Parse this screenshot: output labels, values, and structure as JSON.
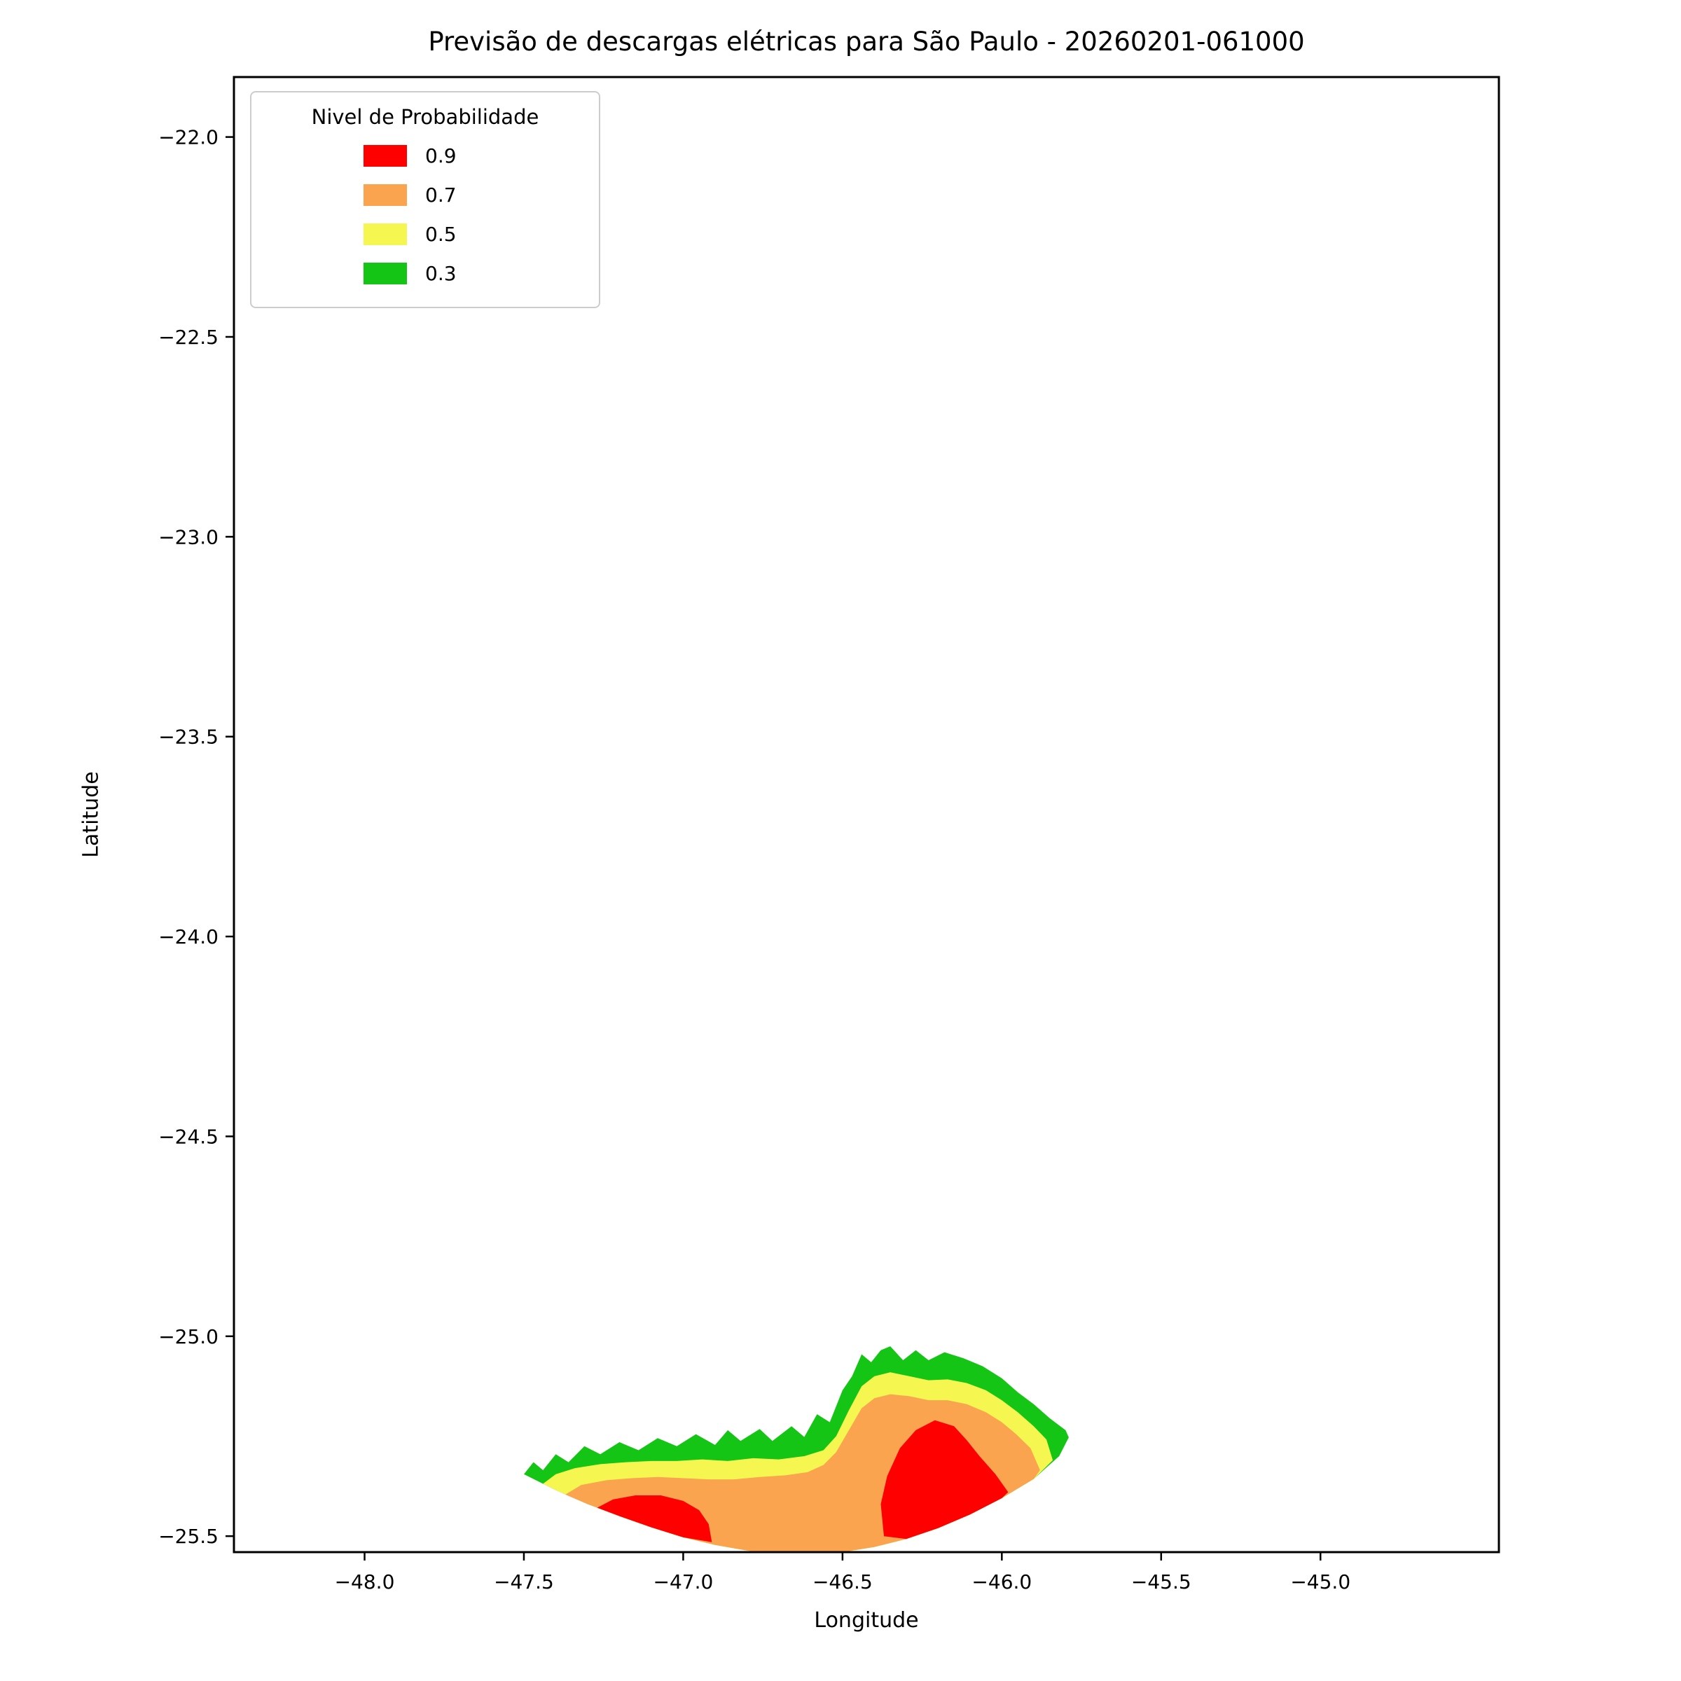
{
  "title": "Previsão de descargas elétricas para São Paulo - 20260201-061000",
  "legend": {
    "title": "Nivel de Probabilidade",
    "entries": [
      {
        "label": "0.9",
        "color": "#fe0000"
      },
      {
        "label": "0.7",
        "color": "#fba44f"
      },
      {
        "label": "0.5",
        "color": "#f6f651"
      },
      {
        "label": "0.3",
        "color": "#15c515"
      }
    ]
  },
  "chart_data": {
    "type": "filled-contour",
    "title": "Previsão de descargas elétricas para São Paulo - 20260201-061000",
    "xlabel": "Longitude",
    "ylabel": "Latitude",
    "xlim": [
      -48.41,
      -44.44
    ],
    "ylim": [
      -25.54,
      -21.85
    ],
    "xticks": [
      -48.0,
      -47.5,
      -47.0,
      -46.5,
      -46.0,
      -45.5,
      -45.0
    ],
    "yticks": [
      -22.0,
      -22.5,
      -23.0,
      -23.5,
      -24.0,
      -24.5,
      -25.0,
      -25.5
    ],
    "grid": false,
    "legend_position": "upper left",
    "levels": [
      {
        "value": 0.3,
        "color": "#15c515",
        "polygons": [
          [
            [
              -47.5,
              -25.345
            ],
            [
              -47.47,
              -25.315
            ],
            [
              -47.44,
              -25.335
            ],
            [
              -47.4,
              -25.295
            ],
            [
              -47.36,
              -25.315
            ],
            [
              -47.31,
              -25.275
            ],
            [
              -47.26,
              -25.295
            ],
            [
              -47.2,
              -25.265
            ],
            [
              -47.14,
              -25.285
            ],
            [
              -47.08,
              -25.255
            ],
            [
              -47.02,
              -25.275
            ],
            [
              -46.96,
              -25.245
            ],
            [
              -46.9,
              -25.272
            ],
            [
              -46.86,
              -25.235
            ],
            [
              -46.82,
              -25.262
            ],
            [
              -46.76,
              -25.232
            ],
            [
              -46.72,
              -25.262
            ],
            [
              -46.66,
              -25.225
            ],
            [
              -46.62,
              -25.252
            ],
            [
              -46.58,
              -25.195
            ],
            [
              -46.54,
              -25.215
            ],
            [
              -46.5,
              -25.135
            ],
            [
              -46.47,
              -25.1
            ],
            [
              -46.44,
              -25.045
            ],
            [
              -46.41,
              -25.065
            ],
            [
              -46.38,
              -25.035
            ],
            [
              -46.35,
              -25.025
            ],
            [
              -46.31,
              -25.06
            ],
            [
              -46.27,
              -25.035
            ],
            [
              -46.23,
              -25.06
            ],
            [
              -46.18,
              -25.04
            ],
            [
              -46.12,
              -25.055
            ],
            [
              -46.06,
              -25.075
            ],
            [
              -46.0,
              -25.105
            ],
            [
              -45.95,
              -25.14
            ],
            [
              -45.9,
              -25.17
            ],
            [
              -45.85,
              -25.205
            ],
            [
              -45.8,
              -25.235
            ],
            [
              -45.79,
              -25.253
            ],
            [
              -45.82,
              -25.3
            ],
            [
              -45.9,
              -25.357
            ],
            [
              -46.0,
              -25.405
            ],
            [
              -46.1,
              -25.446
            ],
            [
              -46.2,
              -25.48
            ],
            [
              -46.3,
              -25.507
            ],
            [
              -46.4,
              -25.527
            ],
            [
              -46.5,
              -25.54
            ],
            [
              -46.6,
              -25.545
            ],
            [
              -46.7,
              -25.544
            ],
            [
              -46.8,
              -25.536
            ],
            [
              -46.9,
              -25.522
            ],
            [
              -47.0,
              -25.503
            ],
            [
              -47.1,
              -25.478
            ],
            [
              -47.2,
              -25.45
            ],
            [
              -47.3,
              -25.42
            ],
            [
              -47.4,
              -25.385
            ]
          ]
        ]
      },
      {
        "value": 0.5,
        "color": "#f6f651",
        "polygons": [
          [
            [
              -47.44,
              -25.369
            ],
            [
              -47.4,
              -25.345
            ],
            [
              -47.34,
              -25.33
            ],
            [
              -47.26,
              -25.32
            ],
            [
              -47.18,
              -25.315
            ],
            [
              -47.1,
              -25.312
            ],
            [
              -47.02,
              -25.312
            ],
            [
              -46.94,
              -25.308
            ],
            [
              -46.86,
              -25.312
            ],
            [
              -46.78,
              -25.305
            ],
            [
              -46.7,
              -25.308
            ],
            [
              -46.62,
              -25.3
            ],
            [
              -46.56,
              -25.285
            ],
            [
              -46.52,
              -25.25
            ],
            [
              -46.48,
              -25.185
            ],
            [
              -46.44,
              -25.125
            ],
            [
              -46.4,
              -25.1
            ],
            [
              -46.35,
              -25.09
            ],
            [
              -46.29,
              -25.1
            ],
            [
              -46.23,
              -25.11
            ],
            [
              -46.17,
              -25.108
            ],
            [
              -46.11,
              -25.117
            ],
            [
              -46.05,
              -25.135
            ],
            [
              -46.0,
              -25.16
            ],
            [
              -45.95,
              -25.19
            ],
            [
              -45.9,
              -25.225
            ],
            [
              -45.86,
              -25.258
            ],
            [
              -45.84,
              -25.31
            ],
            [
              -45.9,
              -25.357
            ],
            [
              -46.0,
              -25.405
            ],
            [
              -46.1,
              -25.446
            ],
            [
              -46.2,
              -25.48
            ],
            [
              -46.3,
              -25.507
            ],
            [
              -46.4,
              -25.527
            ],
            [
              -46.5,
              -25.54
            ],
            [
              -46.6,
              -25.545
            ],
            [
              -46.7,
              -25.544
            ],
            [
              -46.8,
              -25.536
            ],
            [
              -46.9,
              -25.522
            ],
            [
              -47.0,
              -25.503
            ],
            [
              -47.1,
              -25.478
            ],
            [
              -47.2,
              -25.45
            ],
            [
              -47.3,
              -25.42
            ],
            [
              -47.4,
              -25.385
            ]
          ]
        ]
      },
      {
        "value": 0.7,
        "color": "#fba44f",
        "polygons": [
          [
            [
              -47.37,
              -25.396
            ],
            [
              -47.32,
              -25.372
            ],
            [
              -47.24,
              -25.36
            ],
            [
              -47.16,
              -25.355
            ],
            [
              -47.08,
              -25.352
            ],
            [
              -47.0,
              -25.355
            ],
            [
              -46.92,
              -25.358
            ],
            [
              -46.84,
              -25.358
            ],
            [
              -46.76,
              -25.352
            ],
            [
              -46.68,
              -25.348
            ],
            [
              -46.61,
              -25.34
            ],
            [
              -46.56,
              -25.322
            ],
            [
              -46.52,
              -25.29
            ],
            [
              -46.48,
              -25.235
            ],
            [
              -46.44,
              -25.18
            ],
            [
              -46.4,
              -25.155
            ],
            [
              -46.35,
              -25.145
            ],
            [
              -46.29,
              -25.15
            ],
            [
              -46.23,
              -25.16
            ],
            [
              -46.17,
              -25.16
            ],
            [
              -46.11,
              -25.17
            ],
            [
              -46.05,
              -25.19
            ],
            [
              -46.0,
              -25.215
            ],
            [
              -45.955,
              -25.245
            ],
            [
              -45.91,
              -25.28
            ],
            [
              -45.88,
              -25.335
            ],
            [
              -45.9,
              -25.357
            ],
            [
              -46.0,
              -25.405
            ],
            [
              -46.1,
              -25.446
            ],
            [
              -46.2,
              -25.48
            ],
            [
              -46.3,
              -25.507
            ],
            [
              -46.4,
              -25.527
            ],
            [
              -46.5,
              -25.54
            ],
            [
              -46.6,
              -25.545
            ],
            [
              -46.7,
              -25.544
            ],
            [
              -46.8,
              -25.536
            ],
            [
              -46.9,
              -25.522
            ],
            [
              -47.0,
              -25.503
            ],
            [
              -47.1,
              -25.478
            ],
            [
              -47.2,
              -25.45
            ],
            [
              -47.3,
              -25.42
            ]
          ]
        ]
      },
      {
        "value": 0.9,
        "color": "#fe0000",
        "polygons": [
          [
            [
              -47.27,
              -25.429
            ],
            [
              -47.22,
              -25.408
            ],
            [
              -47.15,
              -25.398
            ],
            [
              -47.07,
              -25.398
            ],
            [
              -47.0,
              -25.412
            ],
            [
              -46.95,
              -25.435
            ],
            [
              -46.92,
              -25.47
            ],
            [
              -46.91,
              -25.515
            ],
            [
              -47.0,
              -25.503
            ],
            [
              -47.1,
              -25.478
            ],
            [
              -47.2,
              -25.45
            ]
          ],
          [
            [
              -46.37,
              -25.5
            ],
            [
              -46.38,
              -25.42
            ],
            [
              -46.36,
              -25.35
            ],
            [
              -46.32,
              -25.28
            ],
            [
              -46.27,
              -25.235
            ],
            [
              -46.21,
              -25.21
            ],
            [
              -46.15,
              -25.225
            ],
            [
              -46.11,
              -25.26
            ],
            [
              -46.07,
              -25.3
            ],
            [
              -46.02,
              -25.345
            ],
            [
              -45.98,
              -25.39
            ],
            [
              -46.0,
              -25.405
            ],
            [
              -46.1,
              -25.446
            ],
            [
              -46.2,
              -25.48
            ],
            [
              -46.3,
              -25.507
            ]
          ]
        ]
      }
    ]
  }
}
